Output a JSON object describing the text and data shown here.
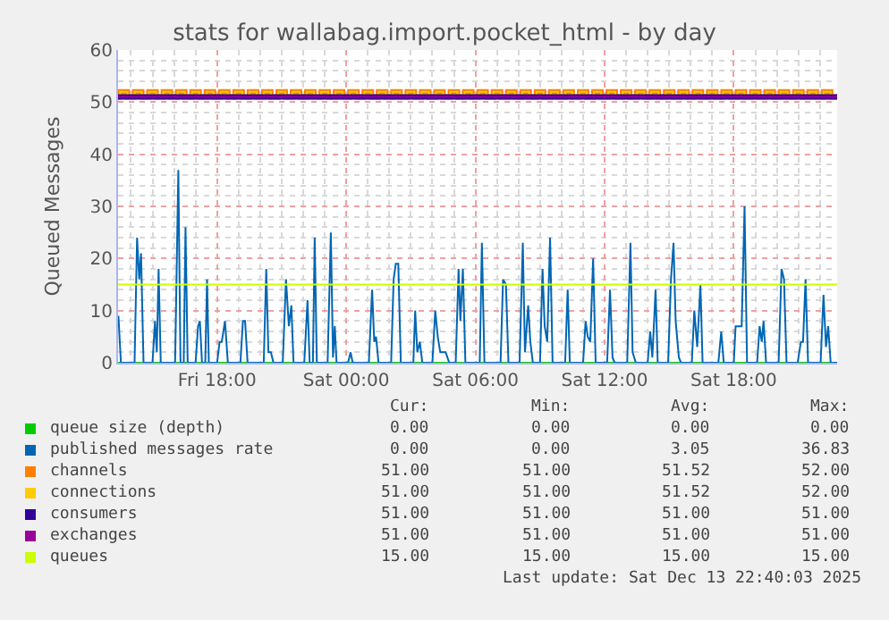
{
  "chart_data": {
    "type": "line",
    "title": "stats for wallabag.import.pocket_html - by day",
    "ylabel": "Queued Messages",
    "x": [
      "2025-12-12T13:24",
      "2025-12-12T13:30",
      "2025-12-12T13:50",
      "2025-12-12T14:10",
      "2025-12-12T14:30",
      "2025-12-12T14:50",
      "2025-12-12T15:10",
      "2025-12-12T15:30",
      "2025-12-12T15:50",
      "2025-12-12T16:10",
      "2025-12-12T16:30",
      "2025-12-12T16:50",
      "2025-12-12T17:10",
      "2025-12-12T17:30",
      "2025-12-12T17:50",
      "2025-12-12T18:10",
      "2025-12-12T18:30",
      "2025-12-12T18:50",
      "2025-12-12T19:10",
      "2025-12-12T19:30",
      "2025-12-12T19:50",
      "2025-12-12T20:10",
      "2025-12-12T20:30",
      "2025-12-12T20:50",
      "2025-12-12T21:10",
      "2025-12-12T21:30",
      "2025-12-12T21:50",
      "2025-12-12T22:10",
      "2025-12-12T22:30",
      "2025-12-12T22:50",
      "2025-12-12T23:10",
      "2025-12-12T23:30",
      "2025-12-12T23:50",
      "2025-12-13T00:10",
      "2025-12-13T00:30",
      "2025-12-13T00:50",
      "2025-12-13T01:10",
      "2025-12-13T01:30",
      "2025-12-13T01:50",
      "2025-12-13T02:10",
      "2025-12-13T02:30",
      "2025-12-13T02:50",
      "2025-12-13T03:10",
      "2025-12-13T03:30",
      "2025-12-13T03:50",
      "2025-12-13T04:10",
      "2025-12-13T04:30",
      "2025-12-13T04:50",
      "2025-12-13T05:10",
      "2025-12-13T05:30",
      "2025-12-13T05:50",
      "2025-12-13T06:10",
      "2025-12-13T06:30",
      "2025-12-13T06:50",
      "2025-12-13T07:10",
      "2025-12-13T07:30",
      "2025-12-13T07:50",
      "2025-12-13T08:10",
      "2025-12-13T08:30",
      "2025-12-13T08:50",
      "2025-12-13T09:10",
      "2025-12-13T09:30",
      "2025-12-13T09:50",
      "2025-12-13T10:10",
      "2025-12-13T10:30",
      "2025-12-13T10:50",
      "2025-12-13T11:10",
      "2025-12-13T11:30",
      "2025-12-13T11:50",
      "2025-12-13T12:10",
      "2025-12-13T12:30",
      "2025-12-13T12:50",
      "2025-12-13T13:10",
      "2025-12-13T13:30",
      "2025-12-13T13:50",
      "2025-12-13T14:10",
      "2025-12-13T14:30",
      "2025-12-13T14:50",
      "2025-12-13T15:10",
      "2025-12-13T15:30",
      "2025-12-13T15:50",
      "2025-12-13T16:10",
      "2025-12-13T16:30",
      "2025-12-13T16:50",
      "2025-12-13T17:10",
      "2025-12-13T17:30",
      "2025-12-13T17:50",
      "2025-12-13T18:10",
      "2025-12-13T18:30",
      "2025-12-13T18:50",
      "2025-12-13T19:10",
      "2025-12-13T19:30",
      "2025-12-13T19:50",
      "2025-12-13T20:10",
      "2025-12-13T20:30",
      "2025-12-13T20:50",
      "2025-12-13T21:10",
      "2025-12-13T21:30",
      "2025-12-13T21:50",
      "2025-12-13T22:10",
      "2025-12-13T22:30",
      "2025-12-13T22:48"
    ],
    "series": [
      {
        "name": "queue size (depth)",
        "color": "#00cc00",
        "x": [
          "2025-12-12T13:24",
          "2025-12-13T22:48"
        ],
        "values": [
          0,
          0
        ]
      },
      {
        "name": "published messages rate",
        "color": "#0066b3",
        "x": [
          "2025-12-12T13:25",
          "2025-12-12T13:32",
          "2025-12-12T14:10",
          "2025-12-12T14:17",
          "2025-12-12T14:23",
          "2025-12-12T14:28",
          "2025-12-12T14:35",
          "2025-12-12T15:00",
          "2025-12-12T15:07",
          "2025-12-12T15:12",
          "2025-12-12T15:17",
          "2025-12-12T15:23",
          "2025-12-12T16:03",
          "2025-12-12T16:12",
          "2025-12-12T16:18",
          "2025-12-12T16:27",
          "2025-12-12T16:32",
          "2025-12-12T16:38",
          "2025-12-12T17:00",
          "2025-12-12T17:07",
          "2025-12-12T17:12",
          "2025-12-12T17:18",
          "2025-12-12T17:27",
          "2025-12-12T17:32",
          "2025-12-12T17:37",
          "2025-12-12T18:00",
          "2025-12-12T18:07",
          "2025-12-12T18:13",
          "2025-12-12T18:22",
          "2025-12-12T18:30",
          "2025-12-12T19:05",
          "2025-12-12T19:12",
          "2025-12-12T19:18",
          "2025-12-12T19:25",
          "2025-12-12T20:10",
          "2025-12-12T20:17",
          "2025-12-12T20:23",
          "2025-12-12T20:30",
          "2025-12-12T20:37",
          "2025-12-12T21:03",
          "2025-12-12T21:12",
          "2025-12-12T21:20",
          "2025-12-12T21:27",
          "2025-12-12T21:33",
          "2025-12-12T22:03",
          "2025-12-12T22:12",
          "2025-12-12T22:18",
          "2025-12-12T22:27",
          "2025-12-12T22:32",
          "2025-12-12T22:38",
          "2025-12-12T23:08",
          "2025-12-12T23:17",
          "2025-12-12T23:23",
          "2025-12-12T23:28",
          "2025-12-12T23:33",
          "2025-12-13T00:05",
          "2025-12-13T00:12",
          "2025-12-13T00:18",
          "2025-12-13T01:03",
          "2025-12-13T01:12",
          "2025-12-13T01:18",
          "2025-12-13T01:23",
          "2025-12-13T01:30",
          "2025-12-13T02:05",
          "2025-12-13T02:12",
          "2025-12-13T02:18",
          "2025-12-13T02:25",
          "2025-12-13T02:32",
          "2025-12-13T03:07",
          "2025-12-13T03:12",
          "2025-12-13T03:18",
          "2025-12-13T03:25",
          "2025-12-13T03:32",
          "2025-12-13T04:00",
          "2025-12-13T04:08",
          "2025-12-13T04:15",
          "2025-12-13T04:22",
          "2025-12-13T04:37",
          "2025-12-13T04:47",
          "2025-12-13T05:05",
          "2025-12-13T05:13",
          "2025-12-13T05:18",
          "2025-12-13T05:25",
          "2025-12-13T05:32",
          "2025-12-13T06:12",
          "2025-12-13T06:18",
          "2025-12-13T06:25",
          "2025-12-13T07:10",
          "2025-12-13T07:17",
          "2025-12-13T07:25",
          "2025-12-13T07:32",
          "2025-12-13T08:03",
          "2025-12-13T08:12",
          "2025-12-13T08:18",
          "2025-12-13T08:27",
          "2025-12-13T08:33",
          "2025-12-13T08:40",
          "2025-12-13T09:00",
          "2025-12-13T09:07",
          "2025-12-13T09:13",
          "2025-12-13T09:20",
          "2025-12-13T09:28",
          "2025-12-13T09:35",
          "2025-12-13T10:10",
          "2025-12-13T10:17",
          "2025-12-13T10:23",
          "2025-12-13T11:00",
          "2025-12-13T11:07",
          "2025-12-13T11:13",
          "2025-12-13T11:20",
          "2025-12-13T11:28",
          "2025-12-13T11:35",
          "2025-12-13T12:07",
          "2025-12-13T12:15",
          "2025-12-13T12:22",
          "2025-12-13T12:28",
          "2025-12-13T13:03",
          "2025-12-13T13:12",
          "2025-12-13T13:18",
          "2025-12-13T13:27",
          "2025-12-13T14:00",
          "2025-12-13T14:07",
          "2025-12-13T14:13",
          "2025-12-13T14:22",
          "2025-12-13T14:28",
          "2025-12-13T14:57",
          "2025-12-13T15:05",
          "2025-12-13T15:12",
          "2025-12-13T15:18",
          "2025-12-13T15:27",
          "2025-12-13T15:33",
          "2025-12-13T16:03",
          "2025-12-13T16:10",
          "2025-12-13T16:18",
          "2025-12-13T16:27",
          "2025-12-13T16:33",
          "2025-12-13T17:17",
          "2025-12-13T17:25",
          "2025-12-13T17:32",
          "2025-12-13T18:00",
          "2025-12-13T18:05",
          "2025-12-13T18:13",
          "2025-12-13T18:22",
          "2025-12-13T18:30",
          "2025-12-13T18:37",
          "2025-12-13T19:05",
          "2025-12-13T19:12",
          "2025-12-13T19:18",
          "2025-12-13T19:23",
          "2025-12-13T19:30",
          "2025-12-13T20:05",
          "2025-12-13T20:13",
          "2025-12-13T20:20",
          "2025-12-13T20:27",
          "2025-12-13T20:58",
          "2025-12-13T21:07",
          "2025-12-13T21:13",
          "2025-12-13T21:20",
          "2025-12-13T21:27",
          "2025-12-13T22:02",
          "2025-12-13T22:10",
          "2025-12-13T22:17",
          "2025-12-13T22:23",
          "2025-12-13T22:30",
          "2025-12-13T22:48"
        ],
        "values": [
          9,
          0,
          0,
          24,
          16,
          21,
          0,
          0,
          8,
          2,
          18,
          0,
          0,
          37,
          0,
          0,
          26,
          0,
          0,
          7,
          8,
          0,
          0,
          16,
          0,
          0,
          4,
          4,
          8,
          0,
          0,
          8,
          8,
          0,
          0,
          18,
          2,
          2,
          0,
          0,
          16,
          7,
          11,
          0,
          0,
          12,
          0,
          0,
          24,
          0,
          0,
          25,
          1,
          7,
          0,
          0,
          2,
          0,
          0,
          14,
          4,
          5,
          0,
          0,
          16,
          19,
          19,
          0,
          0,
          10,
          2,
          4,
          0,
          0,
          10,
          5,
          2,
          2,
          0,
          0,
          18,
          8,
          18,
          0,
          0,
          23,
          0,
          0,
          16,
          15,
          0,
          0,
          23,
          2,
          11,
          4,
          0,
          0,
          18,
          7,
          4,
          24,
          0,
          0,
          14,
          0,
          0,
          8,
          5,
          4,
          20,
          0,
          0,
          14,
          1,
          0,
          0,
          23,
          2,
          0,
          0,
          6,
          1,
          14,
          0,
          0,
          16,
          23,
          8,
          1,
          0,
          0,
          10,
          3,
          15,
          0,
          0,
          6,
          0,
          0,
          7,
          7,
          7,
          30,
          0,
          0,
          7,
          4,
          8,
          0,
          0,
          18,
          16,
          0,
          0,
          4,
          4,
          16,
          0,
          0,
          13,
          3,
          7,
          0,
          0
        ]
      },
      {
        "name": "channels",
        "color": "#ff8000",
        "type": "step",
        "values": [
          51,
          52,
          51,
          52,
          51,
          52,
          51,
          52,
          51,
          52,
          51,
          52,
          51,
          52,
          51,
          52,
          51,
          52,
          51,
          52,
          51,
          52,
          51,
          52,
          51,
          52,
          51,
          52,
          51,
          52,
          51,
          52,
          51,
          52,
          51,
          52,
          51,
          52,
          51,
          52,
          51,
          52,
          51,
          52,
          51,
          52,
          51,
          52,
          51,
          52,
          51,
          52,
          51,
          52,
          51,
          52,
          51,
          52,
          51,
          52,
          51,
          52,
          51,
          52,
          51,
          52,
          51,
          52,
          51,
          52,
          51,
          52,
          51,
          52,
          51,
          52,
          51,
          52,
          51,
          52,
          51,
          52,
          51,
          52,
          51,
          52,
          51,
          52,
          51,
          52,
          51,
          52,
          51,
          52,
          51,
          52,
          51,
          52,
          51,
          52,
          51,
          51
        ]
      },
      {
        "name": "connections",
        "color": "#ffcc00",
        "type": "step",
        "values": [
          51,
          52,
          51,
          52,
          51,
          52,
          51,
          52,
          51,
          52,
          51,
          52,
          51,
          52,
          51,
          52,
          51,
          52,
          51,
          52,
          51,
          52,
          51,
          52,
          51,
          52,
          51,
          52,
          51,
          52,
          51,
          52,
          51,
          52,
          51,
          52,
          51,
          52,
          51,
          52,
          51,
          52,
          51,
          52,
          51,
          52,
          51,
          52,
          51,
          52,
          51,
          52,
          51,
          52,
          51,
          52,
          51,
          52,
          51,
          52,
          51,
          52,
          51,
          52,
          51,
          52,
          51,
          52,
          51,
          52,
          51,
          52,
          51,
          52,
          51,
          52,
          51,
          52,
          51,
          52,
          51,
          52,
          51,
          52,
          51,
          52,
          51,
          52,
          51,
          52,
          51,
          52,
          51,
          52,
          51,
          52,
          51,
          52,
          51,
          52,
          51,
          51
        ]
      },
      {
        "name": "consumers",
        "color": "#330099",
        "x": [
          "2025-12-12T13:24",
          "2025-12-13T22:48"
        ],
        "values": [
          51,
          51
        ]
      },
      {
        "name": "exchanges",
        "color": "#990099",
        "x": [
          "2025-12-12T13:24",
          "2025-12-13T22:48"
        ],
        "values": [
          51,
          51
        ]
      },
      {
        "name": "queues",
        "color": "#ccff00",
        "x": [
          "2025-12-12T13:24",
          "2025-12-13T22:48"
        ],
        "values": [
          15,
          15
        ]
      }
    ],
    "xlim": [
      "2025-12-12T13:24",
      "2025-12-13T22:48"
    ],
    "xticks": [
      {
        "value": "2025-12-12T18:00",
        "label": "Fri 18:00"
      },
      {
        "value": "2025-12-13T00:00",
        "label": "Sat 00:00"
      },
      {
        "value": "2025-12-13T06:00",
        "label": "Sat 06:00"
      },
      {
        "value": "2025-12-13T12:00",
        "label": "Sat 12:00"
      },
      {
        "value": "2025-12-13T18:00",
        "label": "Sat 18:00"
      }
    ],
    "ylim": [
      0,
      60
    ],
    "yticks": [
      0,
      10,
      20,
      30,
      40,
      50,
      60
    ],
    "grid": true,
    "legend": "bottom left",
    "marker": "none",
    "line_style": "solid",
    "annotations": [
      "Cur:",
      "Min:",
      "Avg:",
      "Max:",
      "0.00",
      "0.00",
      "0.00",
      "0.00",
      "0.00",
      "0.00",
      "3.05",
      "36.83",
      "51.00",
      "51.00",
      "51.52",
      "52.00",
      "51.00",
      "51.00",
      "51.52",
      "52.00",
      "51.00",
      "51.00",
      "51.00",
      "51.00",
      "51.00",
      "51.00",
      "51.00",
      "51.00",
      "15.00",
      "15.00",
      "15.00",
      "15.00",
      "Last update: Sat Dec 13 22:40:03 2025"
    ]
  }
}
